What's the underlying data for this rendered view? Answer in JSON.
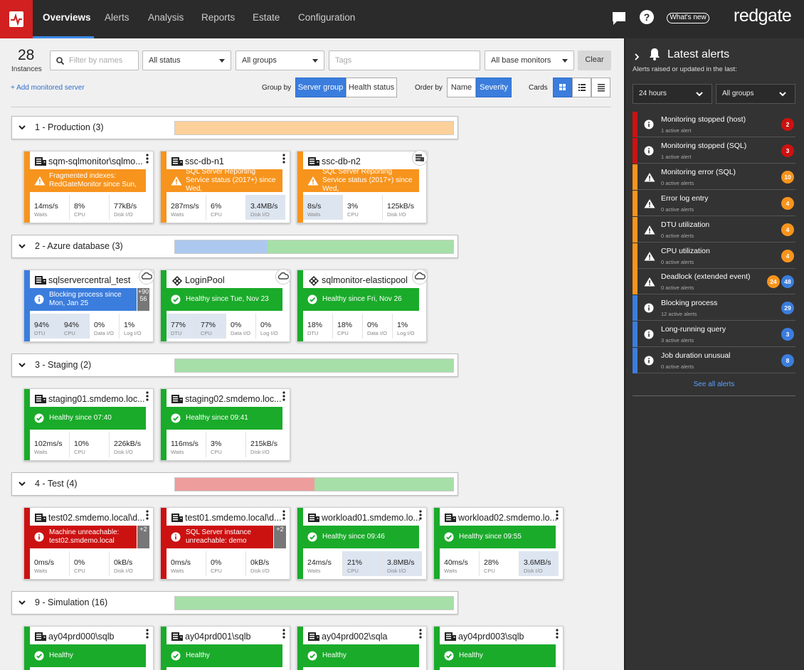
{
  "nav": {
    "tabs": [
      "Overviews",
      "Alerts",
      "Analysis",
      "Reports",
      "Estate",
      "Configuration"
    ],
    "active": 0,
    "whats_new": "What's new",
    "brand": "redgate"
  },
  "toolbar": {
    "count": 28,
    "count_label": "Instances",
    "filter_placeholder": "Filter by names",
    "status": "All status",
    "groups": "All groups",
    "tags": "Tags",
    "monitors": "All base monitors",
    "clear": "Clear",
    "add": "+ Add monitored server",
    "group_by": "Group by",
    "group_options": [
      "Server group",
      "Health status"
    ],
    "group_active": 0,
    "order_by": "Order by",
    "order_options": [
      "Name",
      "Severity"
    ],
    "order_active": 1,
    "cards": "Cards"
  },
  "status_colors": {
    "warning": "#f7941d",
    "info": "#3b7ddd",
    "ok": "#1aab2a",
    "error": "#cc1111"
  },
  "status_light_colors": {
    "warning": "#fbd09a",
    "info": "#adc8ee",
    "ok": "#a6dfa8",
    "error": "#ee9d9d"
  },
  "groups": [
    {
      "title": "1 - Production (3)",
      "cards": [
        {
          "name": "sqm-sqlmonitor\\sqlmo...",
          "icon": "server",
          "status": "warning",
          "message": "Fragmented indexes: RedGateMonitor since Sun,",
          "metrics": [
            {
              "value": "14ms/s",
              "label": "Waits"
            },
            {
              "value": "8%",
              "label": "CPU"
            },
            {
              "value": "77kB/s",
              "label": "Disk I/O"
            }
          ]
        },
        {
          "name": "ssc-db-n1",
          "icon": "server",
          "status": "warning",
          "message": "SQL Server Reporting Service status (2017+) since Wed,",
          "metrics": [
            {
              "value": "287ms/s",
              "label": "Waits"
            },
            {
              "value": "6%",
              "label": "CPU"
            },
            {
              "value": "3.4MB/s",
              "label": "Disk I/O",
              "highlight": true
            }
          ]
        },
        {
          "name": "ssc-db-n2",
          "icon": "server",
          "corner": "stack",
          "status": "warning",
          "message": "SQL Server Reporting Service status (2017+) since Wed,",
          "metrics": [
            {
              "value": "8s/s",
              "label": "Waits",
              "highlight": true
            },
            {
              "value": "3%",
              "label": "CPU"
            },
            {
              "value": "125kB/s",
              "label": "Disk I/O"
            }
          ]
        }
      ]
    },
    {
      "title": "2 - Azure database (3)",
      "cards": [
        {
          "name": "sqlservercentral_test",
          "icon": "server",
          "corner": "cloud",
          "status": "info",
          "message": "Blocking process since Mon, Jan 25",
          "badge": "+9056",
          "metrics": [
            {
              "value": "94%",
              "label": "DTU",
              "highlight": true
            },
            {
              "value": "94%",
              "label": "CPU",
              "highlight": true
            },
            {
              "value": "0%",
              "label": "Data I/O"
            },
            {
              "value": "1%",
              "label": "Log I/O"
            }
          ]
        },
        {
          "name": "LoginPool",
          "icon": "pool",
          "corner": "cloud",
          "status": "ok",
          "message": "Healthy since Tue, Nov 23",
          "metrics": [
            {
              "value": "77%",
              "label": "DTU",
              "highlight": true
            },
            {
              "value": "77%",
              "label": "CPU",
              "highlight": true
            },
            {
              "value": "0%",
              "label": "Data I/O"
            },
            {
              "value": "0%",
              "label": "Log I/O"
            }
          ]
        },
        {
          "name": "sqlmonitor-elasticpool",
          "icon": "pool",
          "corner": "cloud",
          "status": "ok",
          "message": "Healthy since Fri, Nov 26",
          "metrics": [
            {
              "value": "18%",
              "label": "DTU"
            },
            {
              "value": "18%",
              "label": "CPU"
            },
            {
              "value": "0%",
              "label": "Data I/O"
            },
            {
              "value": "1%",
              "label": "Log I/O"
            }
          ]
        }
      ]
    },
    {
      "title": "3 - Staging (2)",
      "cards": [
        {
          "name": "staging01.smdemo.loc...",
          "icon": "server",
          "status": "ok",
          "message": "Healthy since 07:40",
          "metrics": [
            {
              "value": "102ms/s",
              "label": "Waits"
            },
            {
              "value": "10%",
              "label": "CPU"
            },
            {
              "value": "226kB/s",
              "label": "Disk I/O"
            }
          ]
        },
        {
          "name": "staging02.smdemo.loc...",
          "icon": "server",
          "status": "ok",
          "message": "Healthy since 09:41",
          "metrics": [
            {
              "value": "116ms/s",
              "label": "Waits"
            },
            {
              "value": "3%",
              "label": "CPU"
            },
            {
              "value": "215kB/s",
              "label": "Disk I/O"
            }
          ]
        }
      ]
    },
    {
      "title": "4 - Test (4)",
      "cards": [
        {
          "name": "test02.smdemo.local\\d...",
          "icon": "server",
          "status": "error",
          "message": "Machine unreachable: test02.smdemo.local",
          "badge": "+2",
          "metrics": [
            {
              "value": "0ms/s",
              "label": "Waits"
            },
            {
              "value": "0%",
              "label": "CPU"
            },
            {
              "value": "0kB/s",
              "label": "Disk I/O"
            }
          ]
        },
        {
          "name": "test01.smdemo.local\\d...",
          "icon": "server",
          "status": "error",
          "message": "SQL Server instance unreachable: demo",
          "badge": "+2",
          "metrics": [
            {
              "value": "0ms/s",
              "label": "Waits"
            },
            {
              "value": "0%",
              "label": "CPU"
            },
            {
              "value": "0kB/s",
              "label": "Disk I/O"
            }
          ]
        },
        {
          "name": "workload01.smdemo.lo...",
          "icon": "server",
          "status": "ok",
          "message": "Healthy since 09:46",
          "metrics": [
            {
              "value": "24ms/s",
              "label": "Waits"
            },
            {
              "value": "21%",
              "label": "CPU",
              "highlight": true
            },
            {
              "value": "3.8MB/s",
              "label": "Disk I/O",
              "highlight": true
            }
          ]
        },
        {
          "name": "workload02.smdemo.lo...",
          "icon": "server",
          "status": "ok",
          "message": "Healthy since 09:55",
          "metrics": [
            {
              "value": "40ms/s",
              "label": "Waits"
            },
            {
              "value": "28%",
              "label": "CPU"
            },
            {
              "value": "3.6MB/s",
              "label": "Disk I/O",
              "highlight": true
            }
          ]
        }
      ]
    },
    {
      "title": "9 - Simulation (16)",
      "cards": [
        {
          "name": "ay04prd000\\sqlb",
          "icon": "server",
          "status": "ok",
          "message": "Healthy",
          "metrics": []
        },
        {
          "name": "ay04prd001\\sqlb",
          "icon": "server",
          "status": "ok",
          "message": "Healthy",
          "metrics": []
        },
        {
          "name": "ay04prd002\\sqla",
          "icon": "server",
          "status": "ok",
          "message": "Healthy",
          "metrics": []
        },
        {
          "name": "ay04prd003\\sqlb",
          "icon": "server",
          "status": "ok",
          "message": "Healthy",
          "metrics": []
        }
      ]
    }
  ],
  "alerts_panel": {
    "title": "Latest alerts",
    "subtitle": "Alerts raised or updated in the last:",
    "period": "24 hours",
    "group": "All groups",
    "see_all": "See all alerts",
    "alerts": [
      {
        "name": "Monitoring stopped (host)",
        "sub": "1 active alert",
        "color": "#cc1111",
        "icon": "info",
        "badges": [
          {
            "count": 2,
            "color": "#cc1111"
          }
        ]
      },
      {
        "name": "Monitoring stopped (SQL)",
        "sub": "1 active alert",
        "color": "#cc1111",
        "icon": "info",
        "badges": [
          {
            "count": 3,
            "color": "#cc1111"
          }
        ]
      },
      {
        "name": "Monitoring error (SQL)",
        "sub": "0 active alerts",
        "color": "#f7941d",
        "icon": "warning",
        "badges": [
          {
            "count": 10,
            "color": "#f7941d"
          }
        ]
      },
      {
        "name": "Error log entry",
        "sub": "0 active alerts",
        "color": "#f7941d",
        "icon": "warning",
        "badges": [
          {
            "count": 4,
            "color": "#f7941d"
          }
        ]
      },
      {
        "name": "DTU utilization",
        "sub": "0 active alerts",
        "color": "#f7941d",
        "icon": "warning",
        "badges": [
          {
            "count": 4,
            "color": "#f7941d"
          }
        ]
      },
      {
        "name": "CPU utilization",
        "sub": "0 active alerts",
        "color": "#f7941d",
        "icon": "warning",
        "badges": [
          {
            "count": 4,
            "color": "#f7941d"
          }
        ]
      },
      {
        "name": "Deadlock (extended event)",
        "sub": "0 active alerts",
        "color": "#f7941d",
        "icon": "warning",
        "badges": [
          {
            "count": 24,
            "color": "#f7941d"
          },
          {
            "count": 48,
            "color": "#3b7ddd"
          }
        ]
      },
      {
        "name": "Blocking process",
        "sub": "12 active alerts",
        "color": "#3b7ddd",
        "icon": "info",
        "badges": [
          {
            "count": 29,
            "color": "#3b7ddd"
          }
        ]
      },
      {
        "name": "Long-running query",
        "sub": "3 active alerts",
        "color": "#3b7ddd",
        "icon": "info",
        "badges": [
          {
            "count": 3,
            "color": "#3b7ddd"
          }
        ]
      },
      {
        "name": "Job duration unusual",
        "sub": "0 active alerts",
        "color": "#3b7ddd",
        "icon": "info",
        "badges": [
          {
            "count": 8,
            "color": "#3b7ddd"
          }
        ]
      }
    ]
  }
}
